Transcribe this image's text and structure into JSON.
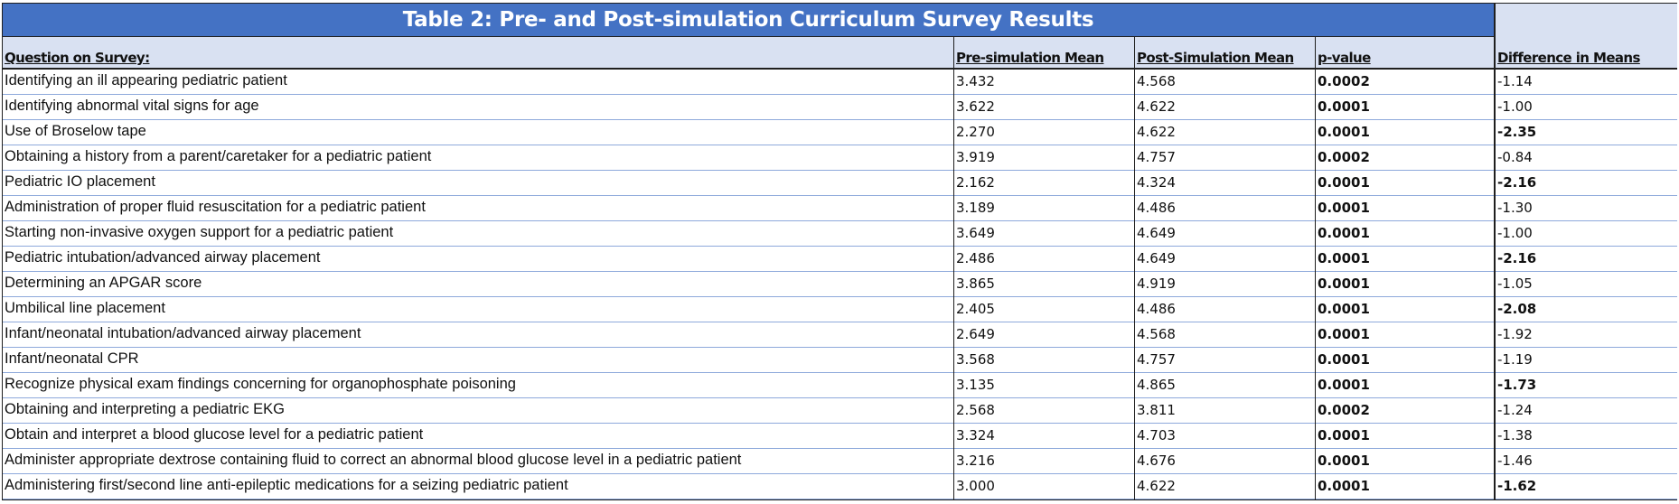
{
  "title": "Table 2: Pre- and Post-simulation Curriculum Survey Results",
  "headers": {
    "question": "Question on Survey:",
    "pre": "Pre-simulation Mean",
    "post": "Post-Simulation Mean",
    "p": "p-value",
    "diff": "Difference in Means"
  },
  "rows": [
    {
      "question": "Identifying an ill appearing pediatric patient",
      "pre": "3.432",
      "post": "4.568",
      "p": "0.0002",
      "diff": "-1.14",
      "diff_bold": false
    },
    {
      "question": "Identifying abnormal vital signs for age",
      "pre": "3.622",
      "post": "4.622",
      "p": "0.0001",
      "diff": "-1.00",
      "diff_bold": false
    },
    {
      "question": "Use of Broselow tape",
      "pre": "2.270",
      "post": "4.622",
      "p": "0.0001",
      "diff": "-2.35",
      "diff_bold": true
    },
    {
      "question": "Obtaining a history from a parent/caretaker for a pediatric patient",
      "pre": "3.919",
      "post": "4.757",
      "p": "0.0002",
      "diff": "-0.84",
      "diff_bold": false
    },
    {
      "question": "Pediatric IO placement",
      "pre": "2.162",
      "post": "4.324",
      "p": "0.0001",
      "diff": "-2.16",
      "diff_bold": true
    },
    {
      "question": "Administration of proper fluid resuscitation for a pediatric patient",
      "pre": "3.189",
      "post": "4.486",
      "p": "0.0001",
      "diff": "-1.30",
      "diff_bold": false
    },
    {
      "question": "Starting non-invasive oxygen support for a pediatric patient",
      "pre": "3.649",
      "post": "4.649",
      "p": "0.0001",
      "diff": "-1.00",
      "diff_bold": false
    },
    {
      "question": "Pediatric intubation/advanced airway placement",
      "pre": "2.486",
      "post": "4.649",
      "p": "0.0001",
      "diff": "-2.16",
      "diff_bold": true
    },
    {
      "question": "Determining an APGAR score",
      "pre": "3.865",
      "post": "4.919",
      "p": "0.0001",
      "diff": "-1.05",
      "diff_bold": false
    },
    {
      "question": "Umbilical line placement",
      "pre": "2.405",
      "post": "4.486",
      "p": "0.0001",
      "diff": "-2.08",
      "diff_bold": true
    },
    {
      "question": "Infant/neonatal intubation/advanced airway placement",
      "pre": "2.649",
      "post": "4.568",
      "p": "0.0001",
      "diff": "-1.92",
      "diff_bold": false
    },
    {
      "question": "Infant/neonatal CPR",
      "pre": "3.568",
      "post": "4.757",
      "p": "0.0001",
      "diff": "-1.19",
      "diff_bold": false
    },
    {
      "question": "Recognize physical exam findings concerning for organophosphate poisoning",
      "pre": "3.135",
      "post": "4.865",
      "p": "0.0001",
      "diff": "-1.73",
      "diff_bold": true
    },
    {
      "question": "Obtaining and interpreting a pediatric EKG",
      "pre": "2.568",
      "post": "3.811",
      "p": "0.0002",
      "diff": "-1.24",
      "diff_bold": false
    },
    {
      "question": "Obtain and interpret a blood glucose level for a pediatric patient",
      "pre": "3.324",
      "post": "4.703",
      "p": "0.0001",
      "diff": "-1.38",
      "diff_bold": false
    },
    {
      "question": "Administer appropriate dextrose containing fluid to correct an abnormal blood glucose level in a pediatric patient",
      "pre": "3.216",
      "post": "4.676",
      "p": "0.0001",
      "diff": "-1.46",
      "diff_bold": false
    },
    {
      "question": "Administering first/second line anti-epileptic medications for a seizing pediatric patient",
      "pre": "3.000",
      "post": "4.622",
      "p": "0.0001",
      "diff": "-1.62",
      "diff_bold": true
    }
  ],
  "colors": {
    "title_band": "#4472c4",
    "header_fill": "#d9e1f2",
    "row_divider": "#8ea9db"
  }
}
